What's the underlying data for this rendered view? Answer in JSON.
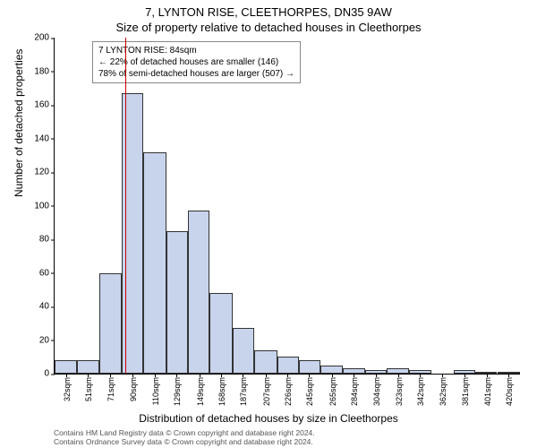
{
  "title_line1": "7, LYNTON RISE, CLEETHORPES, DN35 9AW",
  "title_line2": "Size of property relative to detached houses in Cleethorpes",
  "chart": {
    "type": "histogram",
    "ylim": [
      0,
      200
    ],
    "ytick_step": 20,
    "y_ticks": [
      0,
      20,
      40,
      60,
      80,
      100,
      120,
      140,
      160,
      180,
      200
    ],
    "x_ticks": [
      32,
      51,
      71,
      90,
      110,
      129,
      149,
      168,
      187,
      207,
      226,
      245,
      265,
      284,
      304,
      323,
      342,
      362,
      381,
      401,
      420
    ],
    "x_tick_suffix": "sqm",
    "x_min": 22,
    "x_max": 430,
    "bar_color": "#c8d4ec",
    "bar_border": "#333333",
    "background_color": "#ffffff",
    "bars": [
      {
        "x0": 22,
        "x1": 42,
        "y": 8
      },
      {
        "x0": 42,
        "x1": 61,
        "y": 8
      },
      {
        "x0": 61,
        "x1": 81,
        "y": 60
      },
      {
        "x0": 81,
        "x1": 100,
        "y": 167
      },
      {
        "x0": 100,
        "x1": 120,
        "y": 132
      },
      {
        "x0": 120,
        "x1": 139,
        "y": 85
      },
      {
        "x0": 139,
        "x1": 158,
        "y": 97
      },
      {
        "x0": 158,
        "x1": 178,
        "y": 48
      },
      {
        "x0": 178,
        "x1": 197,
        "y": 27
      },
      {
        "x0": 197,
        "x1": 217,
        "y": 14
      },
      {
        "x0": 217,
        "x1": 236,
        "y": 10
      },
      {
        "x0": 236,
        "x1": 255,
        "y": 8
      },
      {
        "x0": 255,
        "x1": 275,
        "y": 5
      },
      {
        "x0": 275,
        "x1": 294,
        "y": 3
      },
      {
        "x0": 294,
        "x1": 313,
        "y": 2
      },
      {
        "x0": 313,
        "x1": 333,
        "y": 3
      },
      {
        "x0": 333,
        "x1": 352,
        "y": 2
      },
      {
        "x0": 352,
        "x1": 372,
        "y": 0
      },
      {
        "x0": 372,
        "x1": 391,
        "y": 2
      },
      {
        "x0": 391,
        "x1": 410,
        "y": 1
      },
      {
        "x0": 410,
        "x1": 430,
        "y": 1
      }
    ],
    "reference_line": {
      "x": 84,
      "color": "#cc0000"
    },
    "annotation": {
      "line1": "7 LYNTON RISE: 84sqm",
      "line2": "← 22% of detached houses are smaller (146)",
      "line3": "78% of semi-detached houses are larger (507) →"
    },
    "ylabel": "Number of detached properties",
    "xlabel": "Distribution of detached houses by size in Cleethorpes"
  },
  "footer_line1": "Contains HM Land Registry data © Crown copyright and database right 2024.",
  "footer_line2": "Contains Ordnance Survey data © Crown copyright and database right 2024."
}
